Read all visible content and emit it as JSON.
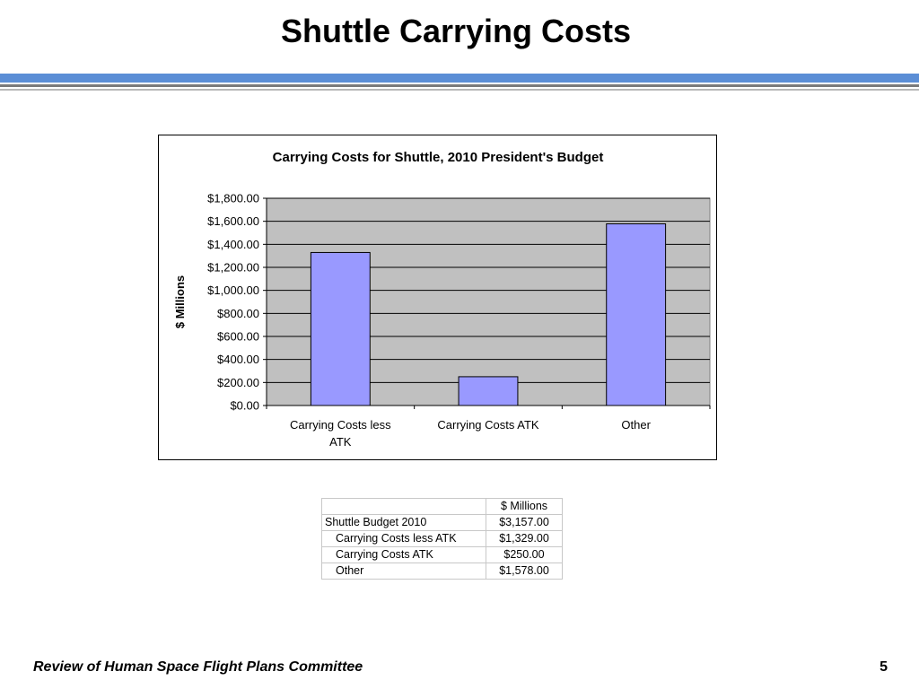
{
  "slide": {
    "title": "Shuttle Carrying Costs",
    "footer": "Review of Human Space Flight Plans Committee",
    "page_number": "5",
    "accent_color": "#5b8ed6"
  },
  "chart_data": {
    "type": "bar",
    "title": "Carrying Costs for Shuttle, 2010 President's Budget",
    "xlabel": "",
    "ylabel": "$ Millions",
    "categories": [
      "Carrying Costs less ATK",
      "Carrying Costs ATK",
      "Other"
    ],
    "category_label_lines": [
      [
        "Carrying Costs less",
        "ATK"
      ],
      [
        "Carrying Costs ATK"
      ],
      [
        "Other"
      ]
    ],
    "values": [
      1329,
      250,
      1578
    ],
    "ylim": [
      0,
      1800
    ],
    "yticks": [
      0,
      200,
      400,
      600,
      800,
      1000,
      1200,
      1400,
      1600,
      1800
    ],
    "ytick_labels": [
      "$0.00",
      "$200.00",
      "$400.00",
      "$600.00",
      "$800.00",
      "$1,000.00",
      "$1,200.00",
      "$1,400.00",
      "$1,600.00",
      "$1,800.00"
    ],
    "grid": true,
    "legend": "none",
    "bar_color": "#9999ff",
    "plot_background": "#c0c0c0"
  },
  "table": {
    "header": [
      "",
      "$ Millions"
    ],
    "rows": [
      {
        "label": "Shuttle Budget 2010",
        "value": "$3,157.00"
      },
      {
        "label": "Carrying Costs less ATK",
        "value": "$1,329.00"
      },
      {
        "label": "Carrying Costs ATK",
        "value": "$250.00"
      },
      {
        "label": "Other",
        "value": "$1,578.00"
      }
    ]
  }
}
